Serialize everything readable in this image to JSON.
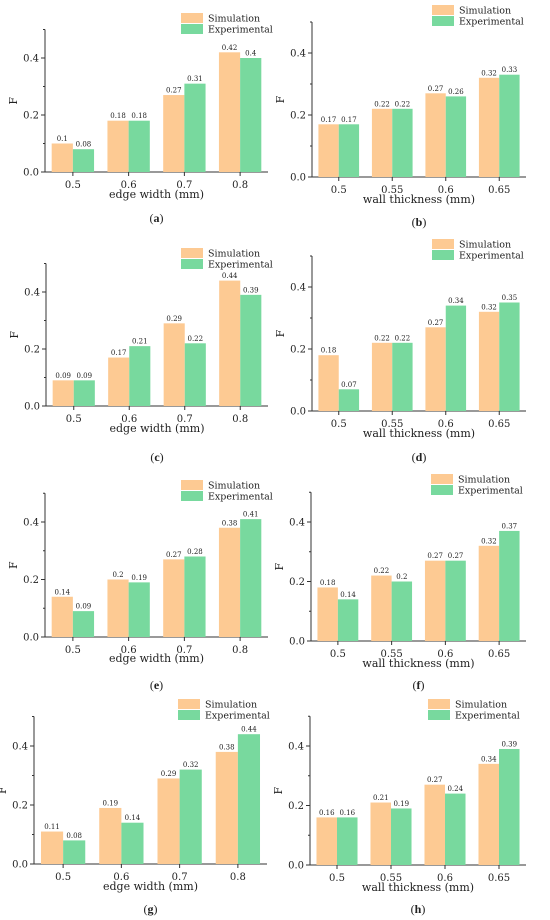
{
  "colors": {
    "simulation": "#fdca93",
    "experimental": "#78d99e",
    "axis": "#333333"
  },
  "chart_data": [
    {
      "panel": "(a)",
      "type": "bar",
      "xlabel": "edge width (mm)",
      "ylabel": "F",
      "categories": [
        "0.5",
        "0.6",
        "0.7",
        "0.8"
      ],
      "ylim": [
        0,
        0.5
      ],
      "yticks": [
        "0.0",
        "0.2",
        "0.4"
      ],
      "legend_position": "top-right",
      "series": [
        {
          "name": "Simulation",
          "values": [
            0.1,
            0.18,
            0.27,
            0.42
          ],
          "labels": [
            "0.1",
            "0.18",
            "0.27",
            "0.42"
          ]
        },
        {
          "name": "Experimental",
          "values": [
            0.08,
            0.18,
            0.31,
            0.4
          ],
          "labels": [
            "0.08",
            "0.18",
            "0.31",
            "0.4"
          ]
        }
      ]
    },
    {
      "panel": "(b)",
      "type": "bar",
      "xlabel": "wall thickness (mm)",
      "ylabel": "F",
      "categories": [
        "0.5",
        "0.55",
        "0.6",
        "0.65"
      ],
      "ylim": [
        0,
        0.5
      ],
      "yticks": [
        "0.0",
        "0.2",
        "0.4"
      ],
      "legend_position": "top-right",
      "series": [
        {
          "name": "Simulation",
          "values": [
            0.17,
            0.22,
            0.27,
            0.32
          ],
          "labels": [
            "0.17",
            "0.22",
            "0.27",
            "0.32"
          ]
        },
        {
          "name": "Experimental",
          "values": [
            0.17,
            0.22,
            0.26,
            0.33
          ],
          "labels": [
            "0.17",
            "0.22",
            "0.26",
            "0.33"
          ]
        }
      ]
    },
    {
      "panel": "(c)",
      "type": "bar",
      "xlabel": "edge width (mm)",
      "ylabel": "F",
      "categories": [
        "0.5",
        "0.6",
        "0.7",
        "0.8"
      ],
      "ylim": [
        0,
        0.5
      ],
      "yticks": [
        "0.0",
        "0.2",
        "0.4"
      ],
      "legend_position": "top-right",
      "series": [
        {
          "name": "Simulation",
          "values": [
            0.09,
            0.17,
            0.29,
            0.44
          ],
          "labels": [
            "0.09",
            "0.17",
            "0.29",
            "0.44"
          ]
        },
        {
          "name": "Experimental",
          "values": [
            0.09,
            0.21,
            0.22,
            0.39
          ],
          "labels": [
            "0.09",
            "0.21",
            "0.22",
            "0.39"
          ]
        }
      ]
    },
    {
      "panel": "(d)",
      "type": "bar",
      "xlabel": "wall thickness (mm)",
      "ylabel": "F",
      "categories": [
        "0.5",
        "0.55",
        "0.6",
        "0.65"
      ],
      "ylim": [
        0,
        0.5
      ],
      "yticks": [
        "0.0",
        "0.2",
        "0.4"
      ],
      "legend_position": "top-right",
      "series": [
        {
          "name": "Simulation",
          "values": [
            0.18,
            0.22,
            0.27,
            0.32
          ],
          "labels": [
            "0.18",
            "0.22",
            "0.27",
            "0.32"
          ]
        },
        {
          "name": "Experimental",
          "values": [
            0.07,
            0.22,
            0.34,
            0.35
          ],
          "labels": [
            "0.07",
            "0.22",
            "0.34",
            "0.35"
          ]
        }
      ]
    },
    {
      "panel": "(e)",
      "type": "bar",
      "xlabel": "edge width (mm)",
      "ylabel": "F",
      "categories": [
        "0.5",
        "0.6",
        "0.7",
        "0.8"
      ],
      "ylim": [
        0,
        0.5
      ],
      "yticks": [
        "0.0",
        "0.2",
        "0.4"
      ],
      "legend_position": "top-right",
      "series": [
        {
          "name": "Simulation",
          "values": [
            0.14,
            0.2,
            0.27,
            0.38
          ],
          "labels": [
            "0.14",
            "0.2",
            "0.27",
            "0.38"
          ]
        },
        {
          "name": "Experimental",
          "values": [
            0.09,
            0.19,
            0.28,
            0.41
          ],
          "labels": [
            "0.09",
            "0.19",
            "0.28",
            "0.41"
          ]
        }
      ]
    },
    {
      "panel": "(f)",
      "type": "bar",
      "xlabel": "wall thickness (mm)",
      "ylabel": "F",
      "categories": [
        "0.5",
        "0.55",
        "0.6",
        "0.65"
      ],
      "ylim": [
        0,
        0.5
      ],
      "yticks": [
        "0.0",
        "0.2",
        "0.4"
      ],
      "legend_position": "top-right",
      "series": [
        {
          "name": "Simulation",
          "values": [
            0.18,
            0.22,
            0.27,
            0.32
          ],
          "labels": [
            "0.18",
            "0.22",
            "0.27",
            "0.32"
          ]
        },
        {
          "name": "Experimental",
          "values": [
            0.14,
            0.2,
            0.27,
            0.37
          ],
          "labels": [
            "0.14",
            "0.2",
            "0.27",
            "0.37"
          ]
        }
      ]
    },
    {
      "panel": "(g)",
      "type": "bar",
      "xlabel": "edge width (mm)",
      "ylabel": "F",
      "categories": [
        "0.5",
        "0.6",
        "0.7",
        "0.8"
      ],
      "ylim": [
        0,
        0.5
      ],
      "yticks": [
        "0.0",
        "0.2",
        "0.4"
      ],
      "legend_position": "top-right",
      "series": [
        {
          "name": "Simulation",
          "values": [
            0.11,
            0.19,
            0.29,
            0.38
          ],
          "labels": [
            "0.11",
            "0.19",
            "0.29",
            "0.38"
          ]
        },
        {
          "name": "Experimental",
          "values": [
            0.08,
            0.14,
            0.32,
            0.44
          ],
          "labels": [
            "0.08",
            "0.14",
            "0.32",
            "0.44"
          ]
        }
      ]
    },
    {
      "panel": "(h)",
      "type": "bar",
      "xlabel": "wall thickness (mm)",
      "ylabel": "F",
      "categories": [
        "0.5",
        "0.55",
        "0.6",
        "0.65"
      ],
      "ylim": [
        0,
        0.5
      ],
      "yticks": [
        "0.0",
        "0.2",
        "0.4"
      ],
      "legend_position": "top-right",
      "series": [
        {
          "name": "Simulation",
          "values": [
            0.16,
            0.21,
            0.27,
            0.34
          ],
          "labels": [
            "0.16",
            "0.21",
            "0.27",
            "0.34"
          ]
        },
        {
          "name": "Experimental",
          "values": [
            0.16,
            0.19,
            0.24,
            0.39
          ],
          "labels": [
            "0.16",
            "0.19",
            "0.24",
            "0.39"
          ]
        }
      ]
    }
  ]
}
